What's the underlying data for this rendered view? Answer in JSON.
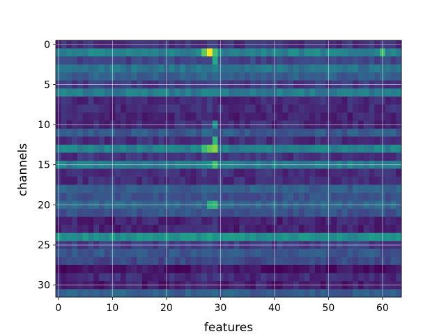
{
  "chart_data": {
    "type": "heatmap",
    "title": "",
    "xlabel": "features",
    "ylabel": "channels",
    "xlim": [
      -0.5,
      63.5
    ],
    "ylim": [
      31.5,
      -0.5
    ],
    "xticks": [
      0,
      10,
      20,
      30,
      40,
      50,
      60
    ],
    "yticks": [
      0,
      5,
      10,
      15,
      20,
      25,
      30
    ],
    "grid": true,
    "colormap": "viridis",
    "n_rows": 32,
    "n_cols": 64,
    "value_range": [
      0,
      1
    ],
    "row_levels": [
      0.14,
      0.45,
      0.2,
      0.38,
      0.3,
      0.17,
      0.42,
      0.12,
      0.12,
      0.1,
      0.12,
      0.28,
      0.13,
      0.44,
      0.15,
      0.42,
      0.13,
      0.13,
      0.3,
      0.25,
      0.33,
      0.25,
      0.1,
      0.1,
      0.5,
      0.18,
      0.27,
      0.22,
      0.05,
      0.12,
      0.08,
      0.3
    ],
    "hot_spots": [
      {
        "row": 1,
        "col": 28,
        "value": 1.0
      },
      {
        "row": 1,
        "col": 27,
        "value": 0.75
      },
      {
        "row": 1,
        "col": 29,
        "value": 0.7
      },
      {
        "row": 1,
        "col": 60,
        "value": 0.68
      },
      {
        "row": 2,
        "col": 29,
        "value": 0.6
      },
      {
        "row": 13,
        "col": 27,
        "value": 0.68
      },
      {
        "row": 13,
        "col": 28,
        "value": 0.76
      },
      {
        "row": 13,
        "col": 29,
        "value": 0.82
      },
      {
        "row": 12,
        "col": 29,
        "value": 0.65
      },
      {
        "row": 15,
        "col": 29,
        "value": 0.7
      },
      {
        "row": 20,
        "col": 28,
        "value": 0.62
      },
      {
        "row": 20,
        "col": 29,
        "value": 0.66
      },
      {
        "row": 10,
        "col": 29,
        "value": 0.5
      }
    ]
  }
}
